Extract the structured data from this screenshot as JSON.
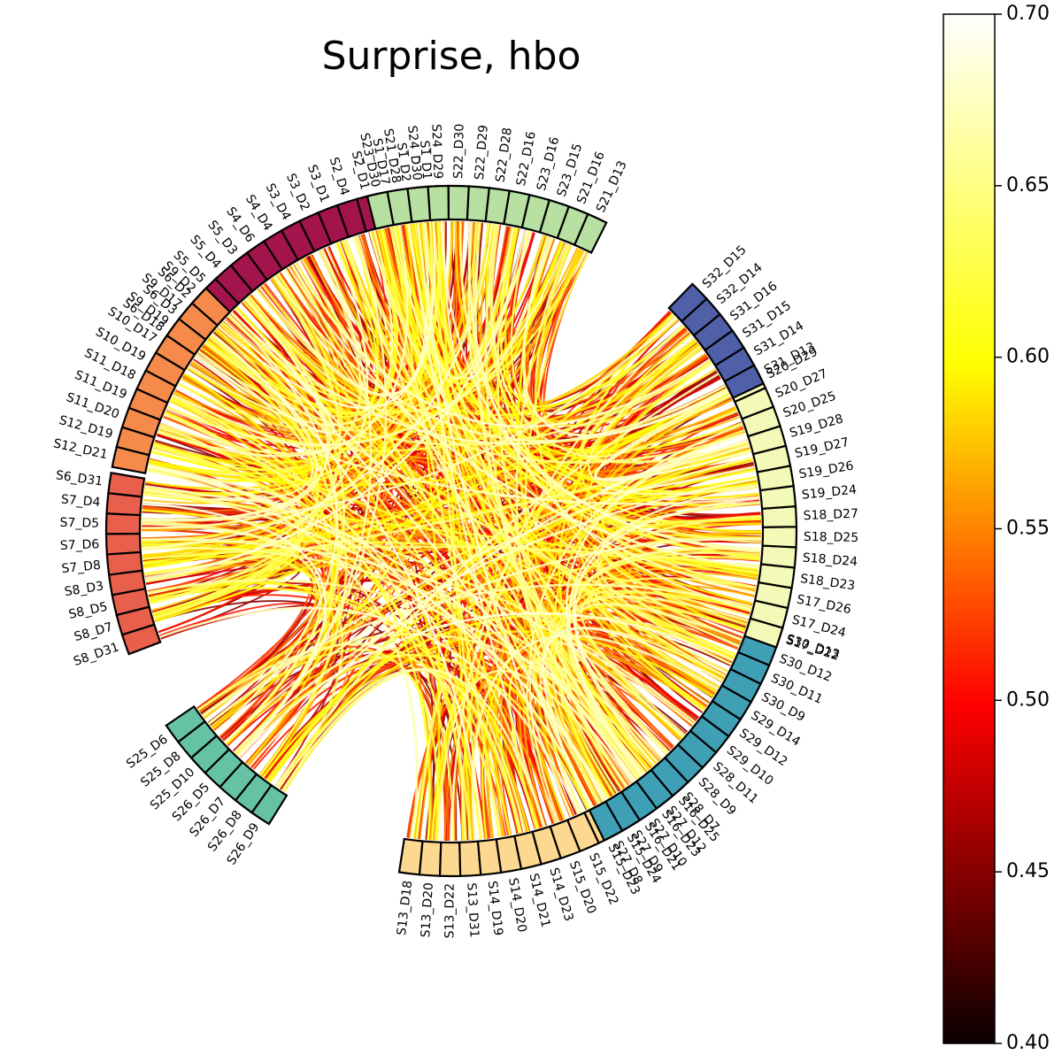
{
  "chart_data": {
    "type": "chord",
    "title": "Surprise, hbo",
    "colorbar": {
      "min": 0.4,
      "max": 0.7,
      "colormap": "hot",
      "ticks": [
        "0.40",
        "0.45",
        "0.50",
        "0.55",
        "0.60",
        "0.65",
        "0.70"
      ]
    },
    "groups": [
      {
        "color": "#a3134c",
        "nodes": [
          "S1_D1",
          "S1_D2",
          "S1_D17",
          "S2_D1",
          "S2_D4",
          "S3_D1",
          "S3_D2",
          "S3_D4",
          "S4_D4",
          "S4_D6",
          "S5_D3",
          "S5_D4",
          "S5_D5",
          "S6_D2",
          "S6_D3",
          "S6_D18"
        ]
      },
      {
        "color": "#f58a4b",
        "nodes": [
          "S9_D2",
          "S9_D17",
          "S9_D19",
          "S10_D17",
          "S10_D19",
          "S11_D18",
          "S11_D19",
          "S11_D20",
          "S12_D19",
          "S12_D21"
        ]
      },
      {
        "color": "#e8604c",
        "nodes": [
          "S6_D31",
          "S7_D4",
          "S7_D5",
          "S7_D6",
          "S7_D8",
          "S8_D3",
          "S8_D5",
          "S8_D7",
          "S8_D31"
        ]
      },
      {
        "color": "#66c2a5",
        "nodes": [
          "S25_D6",
          "S25_D8",
          "S25_D10",
          "S26_D5",
          "S26_D7",
          "S26_D8",
          "S26_D9"
        ]
      },
      {
        "color": "#fdd890",
        "nodes": [
          "S13_D18",
          "S13_D20",
          "S13_D22",
          "S13_D31",
          "S14_D19",
          "S14_D20",
          "S14_D21",
          "S14_D23",
          "S15_D20",
          "S15_D22",
          "S15_D23",
          "S15_D24",
          "S16_D21",
          "S16_D23",
          "S16_D25"
        ]
      },
      {
        "color": "#3f9fb5",
        "nodes": [
          "S27_D8",
          "S27_D9",
          "S27_D10",
          "S27_D12",
          "S28_D7",
          "S28_D9",
          "S28_D11",
          "S29_D10",
          "S29_D12",
          "S29_D14",
          "S30_D9",
          "S30_D11",
          "S30_D12",
          "S30_D13"
        ]
      },
      {
        "color": "#f3f9b6",
        "nodes": [
          "S17_D22",
          "S17_D24",
          "S17_D26",
          "S18_D23",
          "S18_D24",
          "S18_D25",
          "S18_D27",
          "S19_D24",
          "S19_D26",
          "S19_D27",
          "S19_D28",
          "S20_D25",
          "S20_D27",
          "S20_D29"
        ]
      },
      {
        "color": "#4f5fa8",
        "nodes": [
          "S31_D13",
          "S31_D14",
          "S31_D15",
          "S31_D16",
          "S32_D14",
          "S32_D15"
        ]
      },
      {
        "color": "#b8e0a2",
        "nodes": [
          "S21_D13",
          "S21_D16",
          "S23_D15",
          "S23_D16",
          "S22_D16",
          "S22_D28",
          "S22_D29",
          "S22_D30",
          "S24_D29",
          "S24_D30",
          "S21_D28",
          "S23_D30"
        ]
      }
    ]
  }
}
